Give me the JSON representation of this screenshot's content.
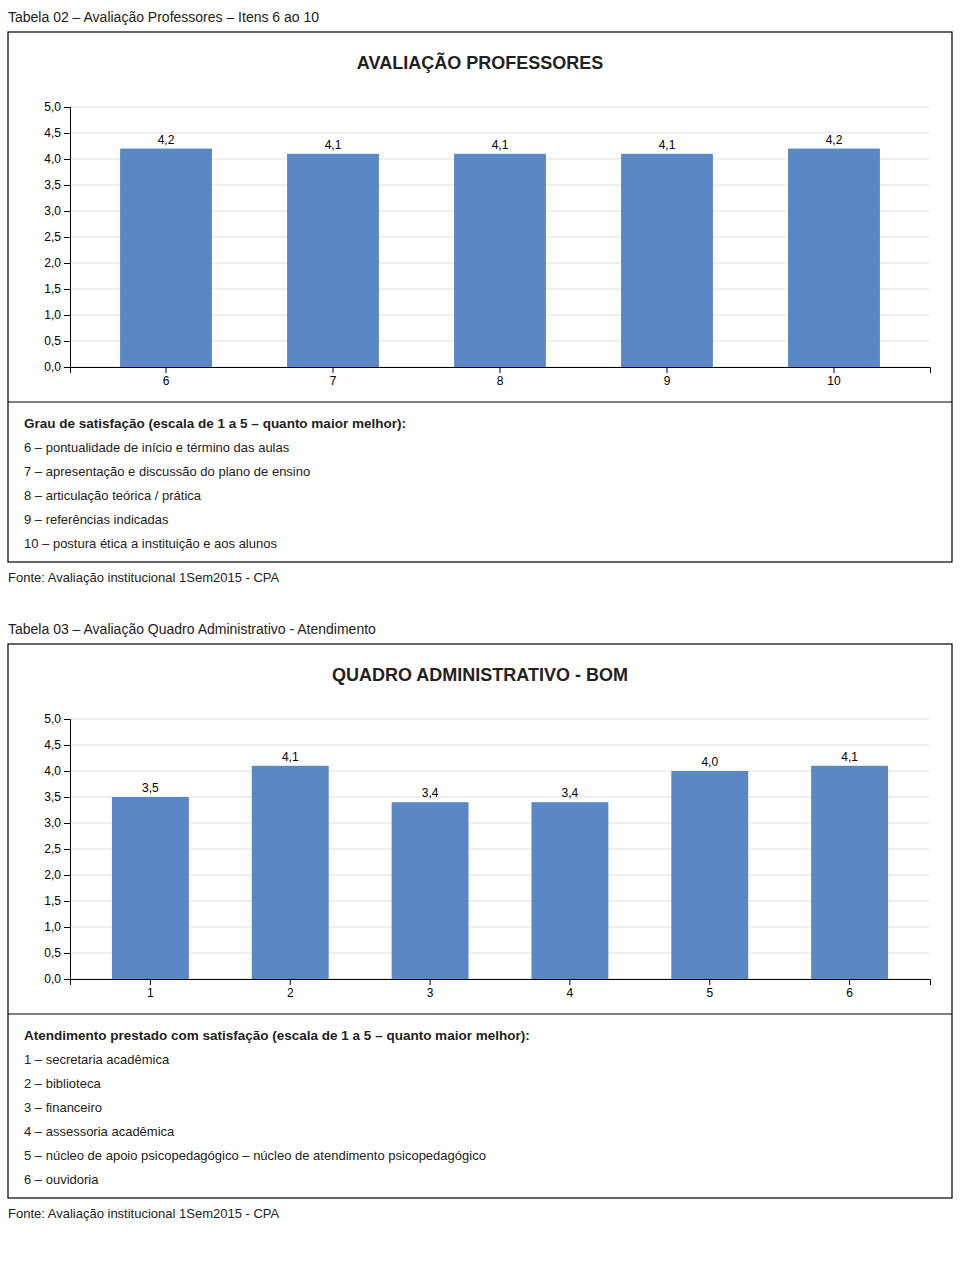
{
  "chart_data": [
    {
      "type": "bar",
      "subtitle": "Tabela 02 – Avaliação Professores – Itens 6 ao 10",
      "title": "AVALIAÇÃO PROFESSORES",
      "categories": [
        "6",
        "7",
        "8",
        "9",
        "10"
      ],
      "values": [
        4.2,
        4.1,
        4.1,
        4.1,
        4.2
      ],
      "value_labels": [
        "4,2",
        "4,1",
        "4,1",
        "4,1",
        "4,2"
      ],
      "data_labels": true,
      "color": "#5b87c5",
      "ylim": [
        0,
        5.0
      ],
      "yticks": [
        {
          "value": 0.0,
          "label": "0,0"
        },
        {
          "value": 0.5,
          "label": "0,5"
        },
        {
          "value": 1.0,
          "label": "1,0"
        },
        {
          "value": 1.5,
          "label": "1,5"
        },
        {
          "value": 2.0,
          "label": "2,0"
        },
        {
          "value": 2.5,
          "label": "2,5"
        },
        {
          "value": 3.0,
          "label": "3,0"
        },
        {
          "value": 3.5,
          "label": "3,5"
        },
        {
          "value": 4.0,
          "label": "4,0"
        },
        {
          "value": 4.5,
          "label": "4,5"
        },
        {
          "value": 5.0,
          "label": "5,0"
        }
      ],
      "grid": true,
      "annotations": [
        "Grau de satisfação (escala de 1 a 5 – quanto maior melhor):",
        "6 – pontualidade de início e término das aulas",
        "7 – apresentação e discussão do plano de ensino",
        "8 – articulação teórica / prática",
        "9 – referências indicadas",
        "10 – postura ética a instituição e aos alunos",
        "Fonte: Avaliação institucional 1Sem2015 - CPA"
      ]
    },
    {
      "type": "bar",
      "subtitle": "Tabela 03 – Avaliação Quadro Administrativo - Atendimento",
      "title": "QUADRO ADMINISTRATIVO - BOM",
      "categories": [
        "1",
        "2",
        "3",
        "4",
        "5",
        "6"
      ],
      "values": [
        3.5,
        4.1,
        3.4,
        3.4,
        4.0,
        4.1
      ],
      "value_labels": [
        "3,5",
        "4,1",
        "3,4",
        "3,4",
        "4,0",
        "4,1"
      ],
      "data_labels": true,
      "color": "#5b87c5",
      "ylim": [
        0,
        5.0
      ],
      "yticks": [
        {
          "value": 0.0,
          "label": "0,0"
        },
        {
          "value": 0.5,
          "label": "0,5"
        },
        {
          "value": 1.0,
          "label": "1,0"
        },
        {
          "value": 1.5,
          "label": "1,5"
        },
        {
          "value": 2.0,
          "label": "2,0"
        },
        {
          "value": 2.5,
          "label": "2,5"
        },
        {
          "value": 3.0,
          "label": "3,0"
        },
        {
          "value": 3.5,
          "label": "3,5"
        },
        {
          "value": 4.0,
          "label": "4,0"
        },
        {
          "value": 4.5,
          "label": "4,5"
        },
        {
          "value": 5.0,
          "label": "5,0"
        }
      ],
      "grid": true,
      "annotations": [
        "Atendimento prestado com satisfação (escala de 1 a 5 – quanto maior melhor):",
        "1 – secretaria acadêmica",
        "2 – biblioteca",
        "3 – financeiro",
        "4 – assessoria acadêmica",
        "5 – núcleo de apoio psicopedagógico – núcleo de atendimento psicopedagógico",
        "6 – ouvidoria",
        "Fonte: Avaliação institucional 1Sem2015 - CPA"
      ]
    }
  ]
}
